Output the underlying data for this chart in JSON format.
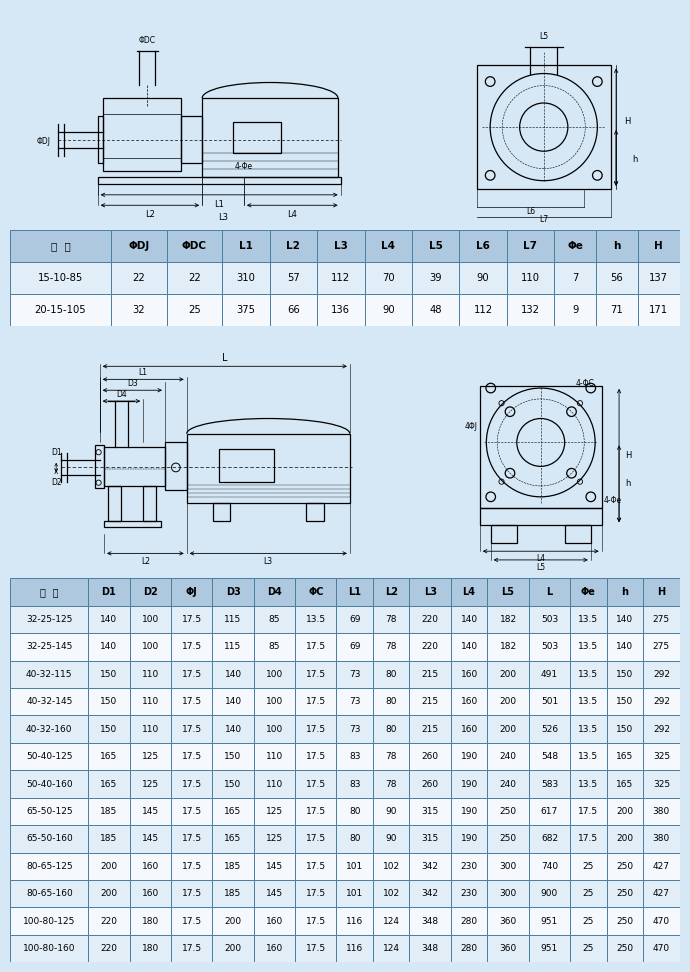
{
  "bg_color": "#d6e8f5",
  "table1_header": [
    "型  号",
    "ΦDJ",
    "ΦDC",
    "L1",
    "L2",
    "L3",
    "L4",
    "L5",
    "L6",
    "L7",
    "Φe",
    "h",
    "H"
  ],
  "table1_rows": [
    [
      "15-10-85",
      "22",
      "22",
      "310",
      "57",
      "112",
      "70",
      "39",
      "90",
      "110",
      "7",
      "56",
      "137"
    ],
    [
      "20-15-105",
      "32",
      "25",
      "375",
      "66",
      "136",
      "90",
      "48",
      "112",
      "132",
      "9",
      "71",
      "171"
    ]
  ],
  "table2_header": [
    "型  号",
    "D1",
    "D2",
    "ΦJ",
    "D3",
    "D4",
    "ΦC",
    "L1",
    "L2",
    "L3",
    "L4",
    "L5",
    "L",
    "Φe",
    "h",
    "H"
  ],
  "table2_rows": [
    [
      "32-25-125",
      "140",
      "100",
      "17.5",
      "115",
      "85",
      "13.5",
      "69",
      "78",
      "220",
      "140",
      "182",
      "503",
      "13.5",
      "140",
      "275"
    ],
    [
      "32-25-145",
      "140",
      "100",
      "17.5",
      "115",
      "85",
      "17.5",
      "69",
      "78",
      "220",
      "140",
      "182",
      "503",
      "13.5",
      "140",
      "275"
    ],
    [
      "40-32-115",
      "150",
      "110",
      "17.5",
      "140",
      "100",
      "17.5",
      "73",
      "80",
      "215",
      "160",
      "200",
      "491",
      "13.5",
      "150",
      "292"
    ],
    [
      "40-32-145",
      "150",
      "110",
      "17.5",
      "140",
      "100",
      "17.5",
      "73",
      "80",
      "215",
      "160",
      "200",
      "501",
      "13.5",
      "150",
      "292"
    ],
    [
      "40-32-160",
      "150",
      "110",
      "17.5",
      "140",
      "100",
      "17.5",
      "73",
      "80",
      "215",
      "160",
      "200",
      "526",
      "13.5",
      "150",
      "292"
    ],
    [
      "50-40-125",
      "165",
      "125",
      "17.5",
      "150",
      "110",
      "17.5",
      "83",
      "78",
      "260",
      "190",
      "240",
      "548",
      "13.5",
      "165",
      "325"
    ],
    [
      "50-40-160",
      "165",
      "125",
      "17.5",
      "150",
      "110",
      "17.5",
      "83",
      "78",
      "260",
      "190",
      "240",
      "583",
      "13.5",
      "165",
      "325"
    ],
    [
      "65-50-125",
      "185",
      "145",
      "17.5",
      "165",
      "125",
      "17.5",
      "80",
      "90",
      "315",
      "190",
      "250",
      "617",
      "17.5",
      "200",
      "380"
    ],
    [
      "65-50-160",
      "185",
      "145",
      "17.5",
      "165",
      "125",
      "17.5",
      "80",
      "90",
      "315",
      "190",
      "250",
      "682",
      "17.5",
      "200",
      "380"
    ],
    [
      "80-65-125",
      "200",
      "160",
      "17.5",
      "185",
      "145",
      "17.5",
      "101",
      "102",
      "342",
      "230",
      "300",
      "740",
      "25",
      "250",
      "427"
    ],
    [
      "80-65-160",
      "200",
      "160",
      "17.5",
      "185",
      "145",
      "17.5",
      "101",
      "102",
      "342",
      "230",
      "300",
      "900",
      "25",
      "250",
      "427"
    ],
    [
      "100-80-125",
      "220",
      "180",
      "17.5",
      "200",
      "160",
      "17.5",
      "116",
      "124",
      "348",
      "280",
      "360",
      "951",
      "25",
      "250",
      "470"
    ],
    [
      "100-80-160",
      "220",
      "180",
      "17.5",
      "200",
      "160",
      "17.5",
      "116",
      "124",
      "348",
      "280",
      "360",
      "951",
      "25",
      "250",
      "470"
    ]
  ],
  "header_bg": "#aec8e0",
  "row_bg_even": "#e2eef7",
  "row_bg_odd": "#f5f9fd",
  "border_color": "#4a7ea0",
  "text_color": "#000000",
  "t1_col_widths": [
    1.8,
    1.0,
    1.0,
    0.85,
    0.85,
    0.85,
    0.85,
    0.85,
    0.85,
    0.85,
    0.75,
    0.75,
    0.75
  ],
  "t2_col_widths": [
    1.6,
    0.85,
    0.85,
    0.85,
    0.85,
    0.85,
    0.85,
    0.75,
    0.75,
    0.85,
    0.75,
    0.85,
    0.85,
    0.75,
    0.75,
    0.75
  ]
}
